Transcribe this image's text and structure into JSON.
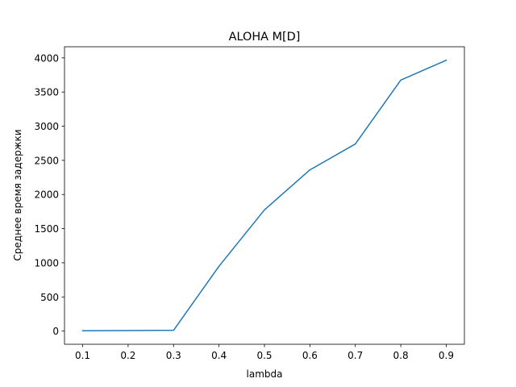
{
  "chart_data": {
    "type": "line",
    "title": "ALOHA M[D]",
    "xlabel": "lambda",
    "ylabel": "Среднее время задержки",
    "x": [
      0.1,
      0.2,
      0.3,
      0.4,
      0.5,
      0.6,
      0.7,
      0.8,
      0.9
    ],
    "series": [
      {
        "values": [
          5,
          7,
          12,
          950,
          1775,
          2360,
          2740,
          3675,
          3965
        ],
        "color": "#1f77b4"
      }
    ],
    "xticks": [
      "0.1",
      "0.2",
      "0.3",
      "0.4",
      "0.5",
      "0.6",
      "0.7",
      "0.8",
      "0.9"
    ],
    "yticks": [
      "0",
      "500",
      "1000",
      "1500",
      "2000",
      "2500",
      "3000",
      "3500",
      "4000"
    ],
    "xlim": [
      0.06,
      0.94
    ],
    "ylim": [
      -193,
      4163
    ],
    "grid": false,
    "legend": "none"
  }
}
